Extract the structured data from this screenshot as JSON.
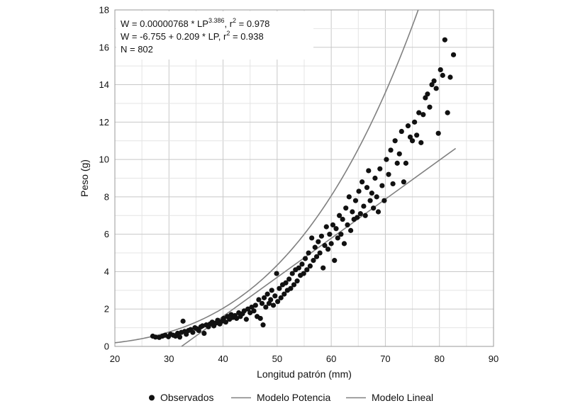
{
  "chart_data": {
    "type": "scatter",
    "title": "",
    "xlabel": "Longitud patrón (mm)",
    "ylabel": "Peso (g)",
    "xlim": [
      20,
      90
    ],
    "ylim": [
      0,
      18
    ],
    "x_ticks": [
      20,
      30,
      40,
      50,
      60,
      70,
      80,
      90
    ],
    "y_ticks": [
      0,
      2,
      4,
      6,
      8,
      10,
      12,
      14,
      16,
      18
    ],
    "x_minor_step": 5,
    "y_minor_step": 1,
    "grid": true,
    "legend_position": "bottom",
    "annotations": {
      "line1_prefix": "W = 0.00000768 * LP",
      "line1_exponent": "3.386",
      "line1_suffix": ", r",
      "line1_r_exp": "2",
      "line1_end": " = 0.978",
      "line2_prefix": "W = -6.755 + 0.209 * LP, r",
      "line2_r_exp": "2",
      "line2_end": " = 0.938",
      "line3": "N = 802"
    },
    "series": [
      {
        "name": "Observados",
        "kind": "scatter",
        "color": "#111111",
        "points": [
          [
            27.0,
            0.55
          ],
          [
            27.5,
            0.5
          ],
          [
            28.2,
            0.48
          ],
          [
            28.8,
            0.55
          ],
          [
            29.3,
            0.6
          ],
          [
            29.9,
            0.52
          ],
          [
            30.3,
            0.65
          ],
          [
            30.8,
            0.6
          ],
          [
            31.2,
            0.55
          ],
          [
            31.6,
            0.7
          ],
          [
            32.0,
            0.5
          ],
          [
            32.3,
            0.75
          ],
          [
            32.6,
            1.35
          ],
          [
            32.9,
            0.8
          ],
          [
            33.2,
            0.65
          ],
          [
            33.6,
            0.85
          ],
          [
            34.0,
            0.9
          ],
          [
            34.4,
            0.75
          ],
          [
            34.8,
            1.0
          ],
          [
            35.1,
            0.95
          ],
          [
            35.5,
            0.85
          ],
          [
            35.9,
            1.05
          ],
          [
            36.2,
            1.1
          ],
          [
            36.5,
            0.7
          ],
          [
            36.9,
            1.15
          ],
          [
            37.3,
            1.05
          ],
          [
            37.6,
            1.2
          ],
          [
            38.0,
            1.3
          ],
          [
            38.3,
            1.1
          ],
          [
            38.7,
            1.25
          ],
          [
            39.0,
            1.4
          ],
          [
            39.4,
            1.2
          ],
          [
            39.8,
            1.35
          ],
          [
            40.1,
            1.5
          ],
          [
            40.5,
            1.3
          ],
          [
            40.8,
            1.6
          ],
          [
            41.2,
            1.45
          ],
          [
            41.5,
            1.7
          ],
          [
            41.8,
            1.55
          ],
          [
            42.2,
            1.65
          ],
          [
            42.5,
            1.5
          ],
          [
            42.9,
            1.8
          ],
          [
            43.2,
            1.6
          ],
          [
            43.6,
            1.75
          ],
          [
            43.9,
            1.9
          ],
          [
            44.3,
            1.45
          ],
          [
            44.6,
            2.0
          ],
          [
            45.0,
            1.8
          ],
          [
            45.3,
            2.1
          ],
          [
            45.7,
            1.9
          ],
          [
            46.0,
            2.2
          ],
          [
            46.3,
            1.6
          ],
          [
            46.6,
            2.5
          ],
          [
            46.9,
            1.5
          ],
          [
            47.2,
            2.3
          ],
          [
            47.4,
            1.15
          ],
          [
            47.6,
            2.6
          ],
          [
            47.9,
            2.1
          ],
          [
            48.2,
            2.8
          ],
          [
            48.5,
            2.3
          ],
          [
            48.8,
            2.5
          ],
          [
            49.0,
            3.0
          ],
          [
            49.3,
            2.2
          ],
          [
            49.6,
            2.7
          ],
          [
            49.9,
            3.9
          ],
          [
            50.1,
            2.4
          ],
          [
            50.4,
            3.1
          ],
          [
            50.7,
            2.6
          ],
          [
            51.0,
            3.3
          ],
          [
            51.3,
            2.8
          ],
          [
            51.6,
            3.4
          ],
          [
            51.9,
            3.0
          ],
          [
            52.2,
            3.6
          ],
          [
            52.5,
            3.1
          ],
          [
            52.8,
            3.9
          ],
          [
            53.1,
            3.3
          ],
          [
            53.4,
            4.1
          ],
          [
            53.7,
            3.5
          ],
          [
            54.0,
            4.2
          ],
          [
            54.3,
            3.8
          ],
          [
            54.6,
            4.4
          ],
          [
            54.9,
            3.9
          ],
          [
            55.2,
            4.7
          ],
          [
            55.5,
            4.1
          ],
          [
            55.8,
            5.0
          ],
          [
            56.1,
            4.3
          ],
          [
            56.4,
            5.8
          ],
          [
            56.7,
            4.6
          ],
          [
            57.0,
            5.3
          ],
          [
            57.3,
            4.8
          ],
          [
            57.6,
            5.6
          ],
          [
            57.9,
            5.0
          ],
          [
            58.2,
            5.9
          ],
          [
            58.5,
            4.2
          ],
          [
            58.8,
            5.4
          ],
          [
            59.1,
            6.4
          ],
          [
            59.4,
            5.2
          ],
          [
            59.7,
            6.0
          ],
          [
            60.0,
            5.5
          ],
          [
            60.3,
            6.5
          ],
          [
            60.6,
            4.6
          ],
          [
            60.9,
            6.3
          ],
          [
            61.2,
            5.8
          ],
          [
            61.5,
            7.0
          ],
          [
            61.8,
            6.0
          ],
          [
            62.1,
            6.8
          ],
          [
            62.4,
            5.5
          ],
          [
            62.7,
            7.4
          ],
          [
            63.0,
            6.5
          ],
          [
            63.3,
            8.0
          ],
          [
            63.6,
            6.2
          ],
          [
            63.9,
            7.2
          ],
          [
            64.2,
            6.8
          ],
          [
            64.5,
            7.8
          ],
          [
            64.8,
            6.9
          ],
          [
            65.1,
            8.3
          ],
          [
            65.4,
            7.1
          ],
          [
            65.7,
            8.8
          ],
          [
            66.0,
            7.5
          ],
          [
            66.3,
            7.0
          ],
          [
            66.6,
            8.5
          ],
          [
            66.9,
            9.4
          ],
          [
            67.2,
            7.8
          ],
          [
            67.5,
            8.2
          ],
          [
            67.8,
            7.4
          ],
          [
            68.1,
            9.0
          ],
          [
            68.4,
            8.0
          ],
          [
            68.7,
            7.2
          ],
          [
            69.0,
            9.5
          ],
          [
            69.4,
            8.6
          ],
          [
            69.8,
            7.8
          ],
          [
            70.2,
            10.0
          ],
          [
            70.6,
            9.2
          ],
          [
            71.0,
            10.5
          ],
          [
            71.4,
            8.7
          ],
          [
            71.8,
            11.0
          ],
          [
            72.2,
            9.8
          ],
          [
            72.6,
            10.3
          ],
          [
            73.0,
            11.5
          ],
          [
            73.4,
            8.8
          ],
          [
            73.8,
            9.8
          ],
          [
            74.2,
            11.8
          ],
          [
            74.6,
            11.2
          ],
          [
            75.0,
            11.0
          ],
          [
            75.4,
            12.0
          ],
          [
            75.8,
            11.3
          ],
          [
            76.2,
            12.5
          ],
          [
            76.6,
            10.9
          ],
          [
            77.0,
            12.4
          ],
          [
            77.4,
            13.3
          ],
          [
            77.8,
            13.5
          ],
          [
            78.2,
            12.8
          ],
          [
            78.6,
            14.0
          ],
          [
            79.0,
            14.2
          ],
          [
            79.4,
            13.8
          ],
          [
            79.8,
            11.4
          ],
          [
            80.2,
            14.8
          ],
          [
            80.6,
            14.5
          ],
          [
            81.0,
            16.4
          ],
          [
            81.5,
            12.5
          ],
          [
            82.0,
            14.4
          ],
          [
            82.6,
            15.6
          ]
        ]
      },
      {
        "name": "Modelo Potencia",
        "kind": "power",
        "color": "#808080",
        "a": 7.68e-06,
        "b": 3.386,
        "x_range": [
          20,
          87
        ]
      },
      {
        "name": "Modelo Lineal",
        "kind": "linear",
        "color": "#808080",
        "intercept": -6.755,
        "slope": 0.209,
        "x_range": [
          32.3,
          83.0
        ]
      }
    ]
  }
}
